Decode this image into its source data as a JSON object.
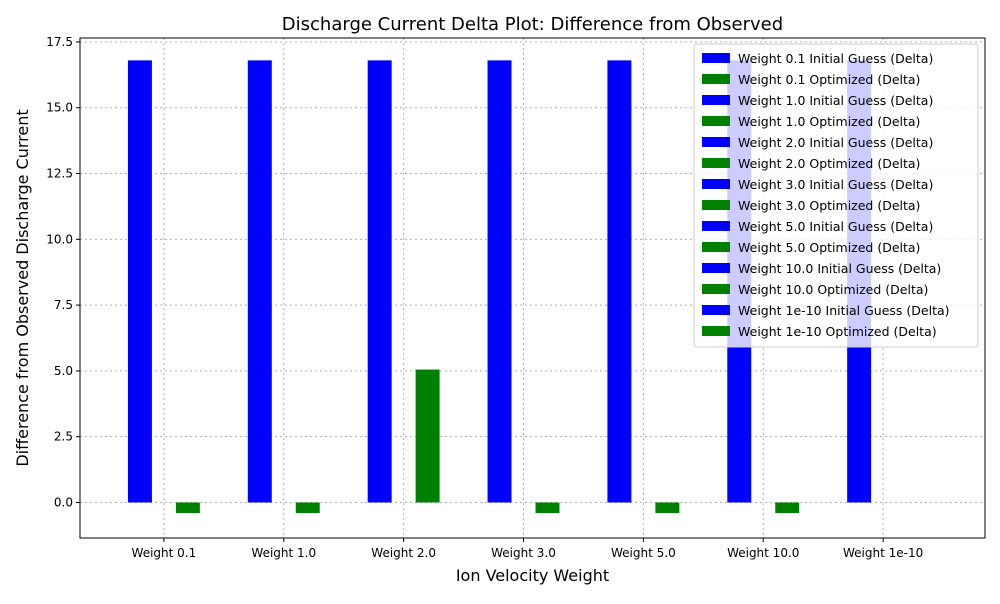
{
  "chart_data": {
    "type": "bar",
    "title": "Discharge Current Delta Plot: Difference from Observed",
    "xlabel": "Ion Velocity Weight",
    "ylabel": "Difference from Observed Discharge Current",
    "categories": [
      "Weight 0.1",
      "Weight 1.0",
      "Weight 2.0",
      "Weight 3.0",
      "Weight 5.0",
      "Weight 10.0",
      "Weight 1e-10"
    ],
    "ylim": [
      -1.35,
      17.65
    ],
    "yticks": [
      0.0,
      2.5,
      5.0,
      7.5,
      10.0,
      12.5,
      15.0,
      17.5
    ],
    "ytick_labels": [
      "0.0",
      "2.5",
      "5.0",
      "7.5",
      "10.0",
      "12.5",
      "15.0",
      "17.5"
    ],
    "grid": true,
    "legend_position": "top-right",
    "colors": {
      "initial": "#0000ff",
      "optimized": "#008000"
    },
    "series": [
      {
        "kind": "initial",
        "values": [
          16.8,
          16.8,
          16.8,
          16.8,
          16.8,
          16.8,
          16.8
        ]
      },
      {
        "kind": "optimized",
        "values": [
          -0.4,
          -0.4,
          5.05,
          -0.4,
          -0.4,
          -0.4,
          0.0
        ]
      }
    ],
    "legend": [
      {
        "label": "Weight 0.1 Initial Guess (Delta)",
        "color": "#0000ff"
      },
      {
        "label": "Weight 0.1 Optimized (Delta)",
        "color": "#008000"
      },
      {
        "label": "Weight 1.0 Initial Guess (Delta)",
        "color": "#0000ff"
      },
      {
        "label": "Weight 1.0 Optimized (Delta)",
        "color": "#008000"
      },
      {
        "label": "Weight 2.0 Initial Guess (Delta)",
        "color": "#0000ff"
      },
      {
        "label": "Weight 2.0 Optimized (Delta)",
        "color": "#008000"
      },
      {
        "label": "Weight 3.0 Initial Guess (Delta)",
        "color": "#0000ff"
      },
      {
        "label": "Weight 3.0 Optimized (Delta)",
        "color": "#008000"
      },
      {
        "label": "Weight 5.0 Initial Guess (Delta)",
        "color": "#0000ff"
      },
      {
        "label": "Weight 5.0 Optimized (Delta)",
        "color": "#008000"
      },
      {
        "label": "Weight 10.0 Initial Guess (Delta)",
        "color": "#0000ff"
      },
      {
        "label": "Weight 10.0 Optimized (Delta)",
        "color": "#008000"
      },
      {
        "label": "Weight 1e-10 Initial Guess (Delta)",
        "color": "#0000ff"
      },
      {
        "label": "Weight 1e-10 Optimized (Delta)",
        "color": "#008000"
      }
    ]
  }
}
